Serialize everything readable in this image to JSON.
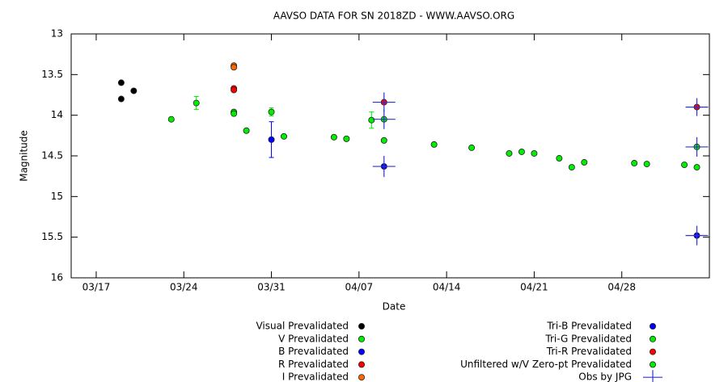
{
  "chart_data": {
    "type": "scatter",
    "title": "AAVSO DATA FOR SN 2018ZD - WWW.AAVSO.ORG",
    "x_label": "Date",
    "y_label": "Magnitude",
    "xlim": [
      "03/15",
      "05/05"
    ],
    "xticks": [
      "03/17",
      "03/24",
      "03/31",
      "04/07",
      "04/14",
      "04/21",
      "04/28"
    ],
    "ylim": [
      16,
      13
    ],
    "yticks": [
      13,
      13.5,
      14,
      14.5,
      15,
      15.5,
      16
    ],
    "legend": "bottom",
    "series": [
      {
        "name": "Visual Prevalidated",
        "color": "#000000",
        "marker": "circle",
        "x": [
          "03/19",
          "03/19",
          "03/20"
        ],
        "values": [
          13.6,
          13.8,
          13.7
        ]
      },
      {
        "name": "V Prevalidated",
        "color": "#00ee00",
        "marker": "circle",
        "x": [
          "03/23",
          "03/25",
          "03/28",
          "03/28",
          "03/29",
          "03/31",
          "04/01",
          "04/05",
          "04/06",
          "04/08",
          "04/09",
          "04/19",
          "04/20",
          "04/21",
          "04/23",
          "04/24",
          "04/25",
          "04/29",
          "04/30",
          "05/03",
          "05/04"
        ],
        "values": [
          14.05,
          13.85,
          13.96,
          13.98,
          14.19,
          13.96,
          14.26,
          14.27,
          14.29,
          14.06,
          14.31,
          14.47,
          14.45,
          14.47,
          14.53,
          14.64,
          14.58,
          14.59,
          14.6,
          14.61,
          14.64
        ],
        "errors": [
          null,
          0.08,
          null,
          null,
          null,
          0.05,
          null,
          null,
          null,
          0.1,
          null,
          null,
          null,
          null,
          null,
          null,
          null,
          null,
          null,
          null,
          null
        ]
      },
      {
        "name": "B Prevalidated",
        "color": "#0000ff",
        "marker": "circle",
        "x": [
          "03/31"
        ],
        "values": [
          14.3
        ],
        "errors": [
          0.22
        ]
      },
      {
        "name": "R Prevalidated",
        "color": "#ff0000",
        "marker": "circle",
        "x": [
          "03/28",
          "03/28"
        ],
        "values": [
          13.67,
          13.69
        ]
      },
      {
        "name": "I Prevalidated",
        "color": "#ff6600",
        "marker": "circle",
        "x": [
          "03/28",
          "03/28"
        ],
        "values": [
          13.39,
          13.41
        ]
      },
      {
        "name": "Tri-B Prevalidated",
        "color": "#0000ff",
        "marker": "circle",
        "x": [
          "04/09",
          "05/04"
        ],
        "values": [
          14.63,
          15.48
        ]
      },
      {
        "name": "Tri-G Prevalidated",
        "color": "#00ee00",
        "marker": "circle",
        "x": [
          "04/09",
          "05/04"
        ],
        "values": [
          14.05,
          14.39
        ]
      },
      {
        "name": "Tri-R Prevalidated",
        "color": "#ff0000",
        "marker": "circle",
        "x": [
          "04/09",
          "05/04"
        ],
        "values": [
          13.84,
          13.9
        ]
      },
      {
        "name": "Unfiltered w/V Zero-pt Prevalidated",
        "color": "#00ee00",
        "marker": "circle",
        "x": [
          "04/13",
          "04/16"
        ],
        "values": [
          14.36,
          14.4
        ]
      },
      {
        "name": "Obs by JPG",
        "color": "#3333cc",
        "marker": "cross",
        "x": [
          "04/09",
          "04/09",
          "04/09",
          "05/04",
          "05/04",
          "05/04"
        ],
        "values": [
          13.84,
          14.05,
          14.63,
          13.9,
          14.39,
          15.48
        ],
        "errors": [
          0.12,
          0.12,
          0.13,
          0.11,
          0.12,
          0.12
        ]
      }
    ]
  }
}
